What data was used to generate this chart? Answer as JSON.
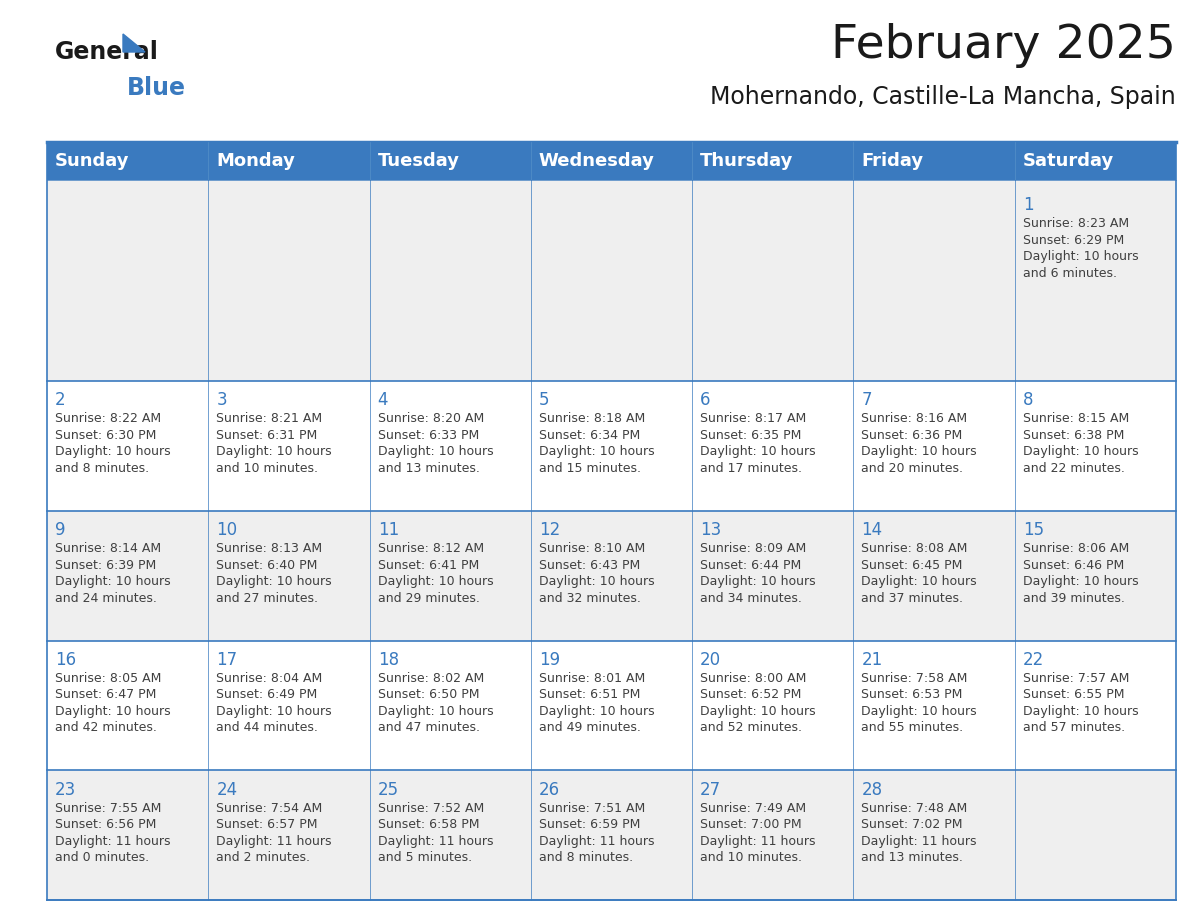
{
  "title": "February 2025",
  "subtitle": "Mohernando, Castille-La Mancha, Spain",
  "header_bg": "#3a7abf",
  "header_text": "#ffffff",
  "cell_bg_light": "#efefef",
  "cell_bg_white": "#ffffff",
  "day_number_color": "#3a7abf",
  "cell_text_color": "#404040",
  "weekdays": [
    "Sunday",
    "Monday",
    "Tuesday",
    "Wednesday",
    "Thursday",
    "Friday",
    "Saturday"
  ],
  "calendar_data": [
    [
      null,
      null,
      null,
      null,
      null,
      null,
      {
        "day": 1,
        "sunrise": "8:23 AM",
        "sunset": "6:29 PM",
        "daylight": "10 hours\nand 6 minutes."
      }
    ],
    [
      {
        "day": 2,
        "sunrise": "8:22 AM",
        "sunset": "6:30 PM",
        "daylight": "10 hours\nand 8 minutes."
      },
      {
        "day": 3,
        "sunrise": "8:21 AM",
        "sunset": "6:31 PM",
        "daylight": "10 hours\nand 10 minutes."
      },
      {
        "day": 4,
        "sunrise": "8:20 AM",
        "sunset": "6:33 PM",
        "daylight": "10 hours\nand 13 minutes."
      },
      {
        "day": 5,
        "sunrise": "8:18 AM",
        "sunset": "6:34 PM",
        "daylight": "10 hours\nand 15 minutes."
      },
      {
        "day": 6,
        "sunrise": "8:17 AM",
        "sunset": "6:35 PM",
        "daylight": "10 hours\nand 17 minutes."
      },
      {
        "day": 7,
        "sunrise": "8:16 AM",
        "sunset": "6:36 PM",
        "daylight": "10 hours\nand 20 minutes."
      },
      {
        "day": 8,
        "sunrise": "8:15 AM",
        "sunset": "6:38 PM",
        "daylight": "10 hours\nand 22 minutes."
      }
    ],
    [
      {
        "day": 9,
        "sunrise": "8:14 AM",
        "sunset": "6:39 PM",
        "daylight": "10 hours\nand 24 minutes."
      },
      {
        "day": 10,
        "sunrise": "8:13 AM",
        "sunset": "6:40 PM",
        "daylight": "10 hours\nand 27 minutes."
      },
      {
        "day": 11,
        "sunrise": "8:12 AM",
        "sunset": "6:41 PM",
        "daylight": "10 hours\nand 29 minutes."
      },
      {
        "day": 12,
        "sunrise": "8:10 AM",
        "sunset": "6:43 PM",
        "daylight": "10 hours\nand 32 minutes."
      },
      {
        "day": 13,
        "sunrise": "8:09 AM",
        "sunset": "6:44 PM",
        "daylight": "10 hours\nand 34 minutes."
      },
      {
        "day": 14,
        "sunrise": "8:08 AM",
        "sunset": "6:45 PM",
        "daylight": "10 hours\nand 37 minutes."
      },
      {
        "day": 15,
        "sunrise": "8:06 AM",
        "sunset": "6:46 PM",
        "daylight": "10 hours\nand 39 minutes."
      }
    ],
    [
      {
        "day": 16,
        "sunrise": "8:05 AM",
        "sunset": "6:47 PM",
        "daylight": "10 hours\nand 42 minutes."
      },
      {
        "day": 17,
        "sunrise": "8:04 AM",
        "sunset": "6:49 PM",
        "daylight": "10 hours\nand 44 minutes."
      },
      {
        "day": 18,
        "sunrise": "8:02 AM",
        "sunset": "6:50 PM",
        "daylight": "10 hours\nand 47 minutes."
      },
      {
        "day": 19,
        "sunrise": "8:01 AM",
        "sunset": "6:51 PM",
        "daylight": "10 hours\nand 49 minutes."
      },
      {
        "day": 20,
        "sunrise": "8:00 AM",
        "sunset": "6:52 PM",
        "daylight": "10 hours\nand 52 minutes."
      },
      {
        "day": 21,
        "sunrise": "7:58 AM",
        "sunset": "6:53 PM",
        "daylight": "10 hours\nand 55 minutes."
      },
      {
        "day": 22,
        "sunrise": "7:57 AM",
        "sunset": "6:55 PM",
        "daylight": "10 hours\nand 57 minutes."
      }
    ],
    [
      {
        "day": 23,
        "sunrise": "7:55 AM",
        "sunset": "6:56 PM",
        "daylight": "11 hours\nand 0 minutes."
      },
      {
        "day": 24,
        "sunrise": "7:54 AM",
        "sunset": "6:57 PM",
        "daylight": "11 hours\nand 2 minutes."
      },
      {
        "day": 25,
        "sunrise": "7:52 AM",
        "sunset": "6:58 PM",
        "daylight": "11 hours\nand 5 minutes."
      },
      {
        "day": 26,
        "sunrise": "7:51 AM",
        "sunset": "6:59 PM",
        "daylight": "11 hours\nand 8 minutes."
      },
      {
        "day": 27,
        "sunrise": "7:49 AM",
        "sunset": "7:00 PM",
        "daylight": "11 hours\nand 10 minutes."
      },
      {
        "day": 28,
        "sunrise": "7:48 AM",
        "sunset": "7:02 PM",
        "daylight": "11 hours\nand 13 minutes."
      },
      null
    ]
  ],
  "row_bg_colors": [
    "#efefef",
    "#ffffff",
    "#efefef",
    "#ffffff",
    "#efefef"
  ],
  "border_color": "#3a7abf",
  "title_fontsize": 34,
  "subtitle_fontsize": 17,
  "header_fontsize": 13,
  "day_num_fontsize": 12,
  "cell_text_fontsize": 9
}
